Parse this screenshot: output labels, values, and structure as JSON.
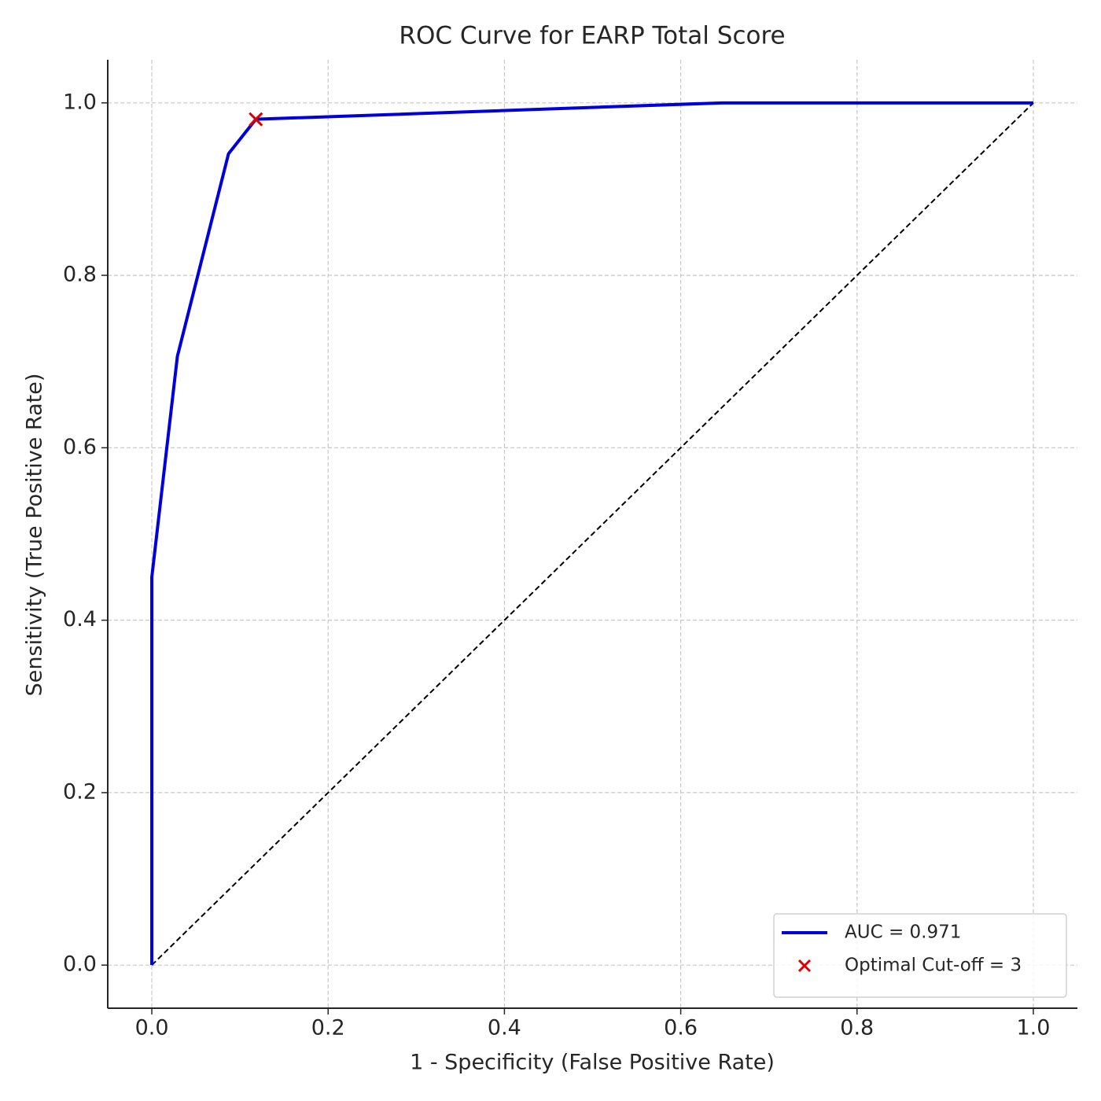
{
  "chart_data": {
    "type": "line",
    "title": "ROC Curve for EARP Total Score",
    "x_label": "1 - Specificity (False Positive Rate)",
    "y_label": "Sensitivity (True Positive Rate)",
    "series": [
      {
        "name": "AUC = 0.971",
        "color": "#0000dd",
        "x": [
          0,
          0,
          0.029,
          0.087,
          0.118,
          0.647,
          1.0
        ],
        "values": [
          0,
          0.45,
          0.706,
          0.941,
          0.981,
          1.0,
          1.0
        ]
      }
    ],
    "scatter": {
      "name": "Optimal Cut-off = 3",
      "color": "#dd0000",
      "x": [
        0.118
      ],
      "values": [
        0.981
      ]
    },
    "reference_line": {
      "x": [
        0,
        1
      ],
      "values": [
        0,
        1
      ],
      "color": "#000000"
    },
    "xlim": [
      -0.05,
      1.05
    ],
    "ylim": [
      -0.05,
      1.05
    ],
    "xticks": [
      {
        "value": 0,
        "label": "0.0"
      },
      {
        "value": 0.2,
        "label": "0.2"
      },
      {
        "value": 0.4,
        "label": "0.4"
      },
      {
        "value": 0.6,
        "label": "0.6"
      },
      {
        "value": 0.8,
        "label": "0.8"
      },
      {
        "value": 1.0,
        "label": "1.0"
      }
    ],
    "yticks": [
      {
        "value": 0,
        "label": "0.0"
      },
      {
        "value": 0.2,
        "label": "0.2"
      },
      {
        "value": 0.4,
        "label": "0.4"
      },
      {
        "value": 0.6,
        "label": "0.6"
      },
      {
        "value": 0.8,
        "label": "0.8"
      },
      {
        "value": 1.0,
        "label": "1.0"
      }
    ],
    "grid": true,
    "legend": "lower right"
  }
}
